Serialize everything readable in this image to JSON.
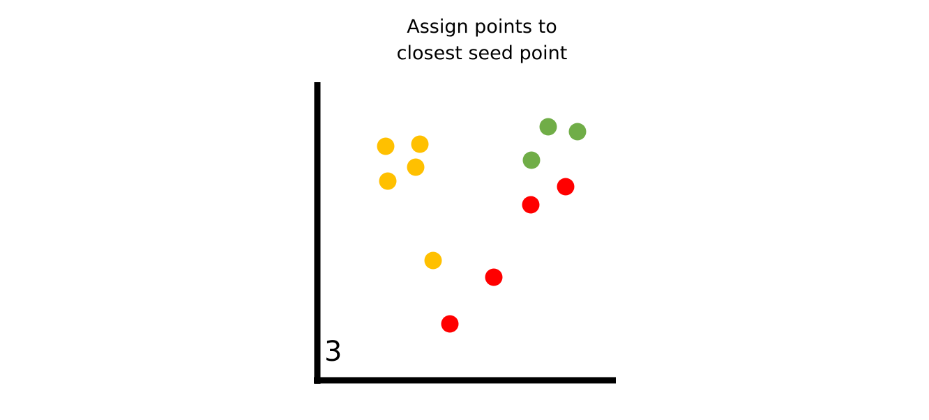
{
  "title": {
    "line1": "Assign points to",
    "line2": "closest seed point"
  },
  "step_number": "3",
  "colors": {
    "axis": "#000000",
    "orange": "#FFC000",
    "green": "#70AD47",
    "red": "#FF0000"
  },
  "points": [
    {
      "cluster": "orange",
      "color": "#FFC000"
    },
    {
      "cluster": "orange",
      "color": "#FFC000"
    },
    {
      "cluster": "orange",
      "color": "#FFC000"
    },
    {
      "cluster": "orange",
      "color": "#FFC000"
    },
    {
      "cluster": "orange",
      "color": "#FFC000"
    },
    {
      "cluster": "green",
      "color": "#70AD47"
    },
    {
      "cluster": "green",
      "color": "#70AD47"
    },
    {
      "cluster": "green",
      "color": "#70AD47"
    },
    {
      "cluster": "red",
      "color": "#FF0000"
    },
    {
      "cluster": "red",
      "color": "#FF0000"
    },
    {
      "cluster": "red",
      "color": "#FF0000"
    },
    {
      "cluster": "red",
      "color": "#FF0000"
    }
  ]
}
